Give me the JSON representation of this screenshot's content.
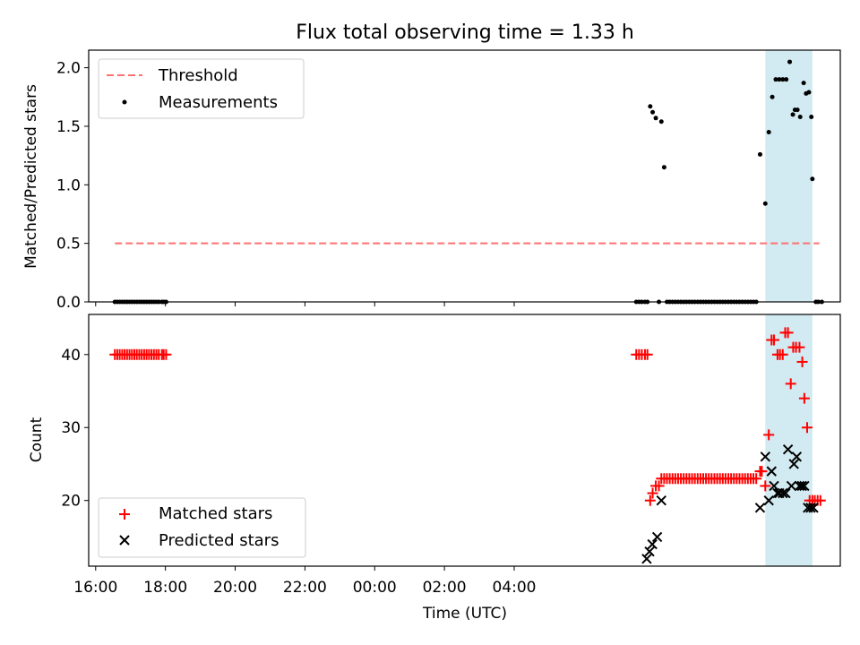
{
  "figure": {
    "title": "Flux total observing time = 1.33 h",
    "xlabel": "Time (UTC)",
    "xticks": [
      "16:00",
      "18:00",
      "20:00",
      "22:00",
      "00:00",
      "02:00",
      "04:00"
    ],
    "colors": {
      "threshold": "#ff7070",
      "measurements": "#000000",
      "matched": "#ff0000",
      "predicted": "#000000",
      "span": "#add8e6"
    }
  },
  "chart_data": [
    {
      "type": "scatter",
      "ylabel": "Matched/Predicted stars",
      "ylim": [
        0,
        2.15
      ],
      "yticks": [
        "0.0",
        "0.5",
        "1.0",
        "1.5",
        "2.0"
      ],
      "x_unit": "hours since 16:00 UTC",
      "xlim": [
        -0.2,
        21.35
      ],
      "shaded_interval": [
        19.2,
        20.55
      ],
      "legend": {
        "position": "upper-left",
        "entries": [
          "Threshold",
          "Measurements"
        ]
      },
      "series": [
        {
          "name": "Threshold",
          "kind": "line",
          "style": "dashed",
          "x": [
            0.55,
            20.75
          ],
          "values": [
            0.5,
            0.5
          ]
        },
        {
          "name": "Measurements",
          "kind": "scatter",
          "x": [
            0.55,
            0.62,
            0.69,
            0.76,
            0.83,
            0.9,
            0.97,
            1.04,
            1.11,
            1.18,
            1.25,
            1.32,
            1.39,
            1.46,
            1.53,
            1.6,
            1.67,
            1.74,
            1.81,
            1.9,
            1.95,
            2.02,
            15.5,
            15.58,
            15.66,
            15.75,
            15.82,
            15.9,
            15.97,
            16.06,
            16.15,
            16.22,
            16.3,
            16.38,
            16.46,
            16.54,
            16.62,
            16.7,
            16.78,
            16.86,
            16.94,
            17.02,
            17.1,
            17.18,
            17.26,
            17.34,
            17.42,
            17.5,
            17.58,
            17.66,
            17.74,
            17.82,
            17.9,
            17.98,
            18.06,
            18.14,
            18.22,
            18.3,
            18.38,
            18.46,
            18.54,
            18.62,
            18.7,
            18.78,
            18.86,
            18.94,
            19.05,
            19.2,
            19.3,
            19.4,
            19.5,
            19.6,
            19.7,
            19.8,
            19.9,
            19.99,
            20.05,
            20.12,
            20.2,
            20.3,
            20.37,
            20.45,
            20.52,
            20.55,
            20.65,
            20.72,
            20.82
          ],
          "values": [
            0,
            0,
            0,
            0,
            0,
            0,
            0,
            0,
            0,
            0,
            0,
            0,
            0,
            0,
            0,
            0,
            0,
            0,
            0,
            0,
            0,
            0,
            0,
            0,
            0,
            0,
            0,
            1.67,
            1.62,
            1.57,
            0,
            1.54,
            1.15,
            0,
            0,
            0,
            0,
            0,
            0,
            0,
            0,
            0,
            0,
            0,
            0,
            0,
            0,
            0,
            0,
            0,
            0,
            0,
            0,
            0,
            0,
            0,
            0,
            0,
            0,
            0,
            0,
            0,
            0,
            0,
            0,
            0,
            1.26,
            0.84,
            1.45,
            1.75,
            1.9,
            1.9,
            1.9,
            1.9,
            2.05,
            1.6,
            1.64,
            1.64,
            1.58,
            1.87,
            1.78,
            1.79,
            1.58,
            1.05,
            0,
            0,
            0
          ]
        }
      ]
    },
    {
      "type": "scatter",
      "ylabel": "Count",
      "ylim": [
        11,
        45.5
      ],
      "yticks": [
        "20",
        "30",
        "40"
      ],
      "x_unit": "hours since 16:00 UTC",
      "xlim": [
        -0.2,
        21.35
      ],
      "shaded_interval": [
        19.2,
        20.55
      ],
      "legend": {
        "position": "lower-left",
        "entries": [
          "Matched stars",
          "Predicted stars"
        ]
      },
      "series": [
        {
          "name": "Matched stars",
          "kind": "scatter",
          "marker": "+",
          "x": [
            0.55,
            0.62,
            0.69,
            0.76,
            0.83,
            0.9,
            0.97,
            1.04,
            1.11,
            1.18,
            1.25,
            1.32,
            1.39,
            1.46,
            1.53,
            1.6,
            1.67,
            1.74,
            1.81,
            1.9,
            1.95,
            2.02,
            15.5,
            15.58,
            15.66,
            15.75,
            15.82,
            15.9,
            15.97,
            16.06,
            16.15,
            16.22,
            16.3,
            16.38,
            16.46,
            16.54,
            16.62,
            16.7,
            16.78,
            16.86,
            16.94,
            17.02,
            17.1,
            17.18,
            17.26,
            17.34,
            17.42,
            17.5,
            17.58,
            17.66,
            17.74,
            17.82,
            17.9,
            17.98,
            18.06,
            18.14,
            18.22,
            18.3,
            18.38,
            18.46,
            18.54,
            18.62,
            18.7,
            18.78,
            18.86,
            18.94,
            19.05,
            19.1,
            19.2,
            19.3,
            19.38,
            19.45,
            19.55,
            19.62,
            19.7,
            19.77,
            19.85,
            19.93,
            20.0,
            20.08,
            20.18,
            20.26,
            20.32,
            20.4,
            20.47,
            20.55,
            20.62,
            20.7,
            20.78
          ],
          "values": [
            40,
            40,
            40,
            40,
            40,
            40,
            40,
            40,
            40,
            40,
            40,
            40,
            40,
            40,
            40,
            40,
            40,
            40,
            40,
            40,
            40,
            40,
            40,
            40,
            40,
            40,
            40,
            20,
            21,
            22,
            22,
            23,
            23,
            23,
            23,
            23,
            23,
            23,
            23,
            23,
            23,
            23,
            23,
            23,
            23,
            23,
            23,
            23,
            23,
            23,
            23,
            23,
            23,
            23,
            23,
            23,
            23,
            23,
            23,
            23,
            23,
            23,
            23,
            23,
            23,
            23,
            24,
            24,
            22,
            29,
            42,
            42,
            40,
            40,
            40,
            43,
            43,
            36,
            41,
            41,
            41,
            39,
            34,
            30,
            20,
            20,
            20,
            20,
            20
          ]
        },
        {
          "name": "Predicted stars",
          "kind": "scatter",
          "marker": "x",
          "x": [
            15.8,
            15.88,
            15.96,
            16.1,
            16.22,
            19.05,
            19.2,
            19.3,
            19.38,
            19.45,
            19.55,
            19.6,
            19.7,
            19.78,
            19.85,
            19.95,
            20.02,
            20.1,
            20.18,
            20.25,
            20.32,
            20.42,
            20.5,
            20.58
          ],
          "values": [
            12,
            13,
            14,
            15,
            20,
            19,
            26,
            20,
            24,
            22,
            21,
            21,
            21,
            21,
            27,
            22,
            25,
            26,
            22,
            22,
            22,
            19,
            19,
            19
          ]
        }
      ]
    }
  ]
}
